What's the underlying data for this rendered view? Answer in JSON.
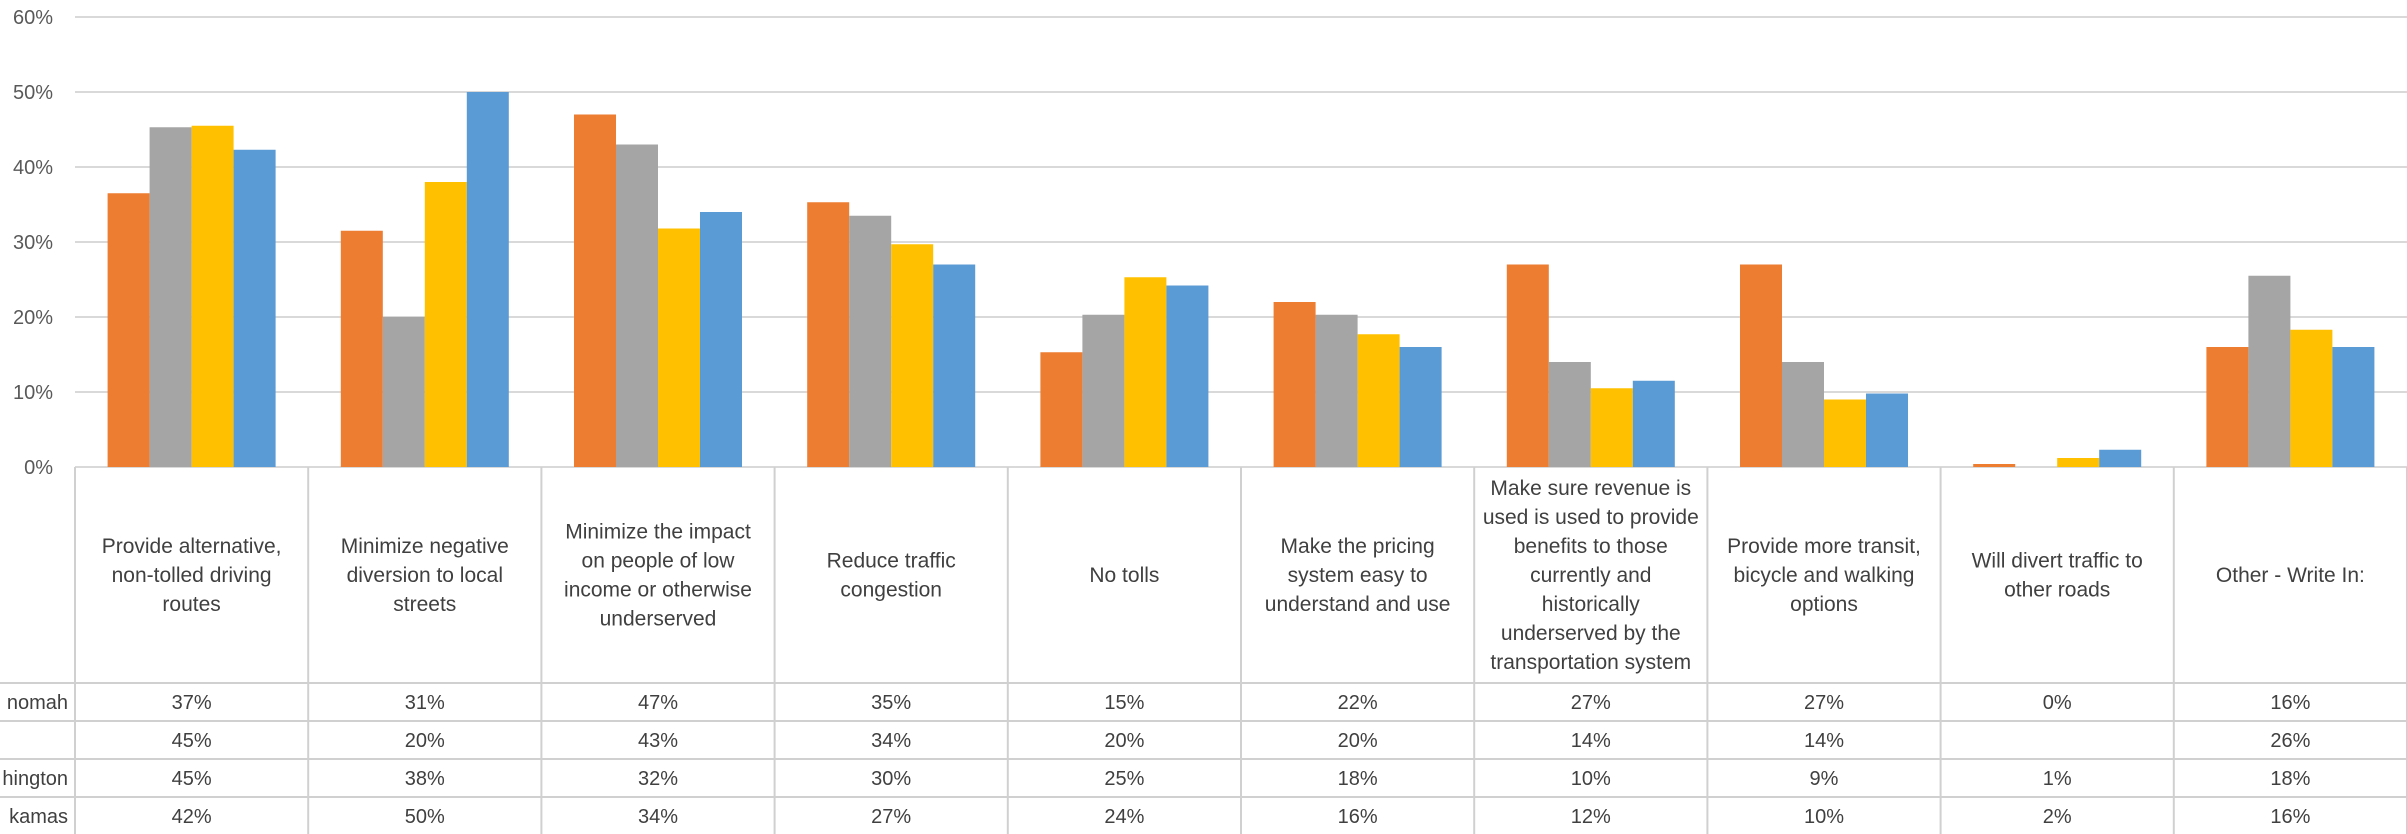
{
  "chart_data": {
    "type": "bar",
    "ylim": [
      0,
      60
    ],
    "yticks": [
      "0%",
      "10%",
      "20%",
      "30%",
      "40%",
      "50%",
      "60%"
    ],
    "grid": true,
    "categories": [
      "Provide alternative, non-tolled driving routes",
      "Minimize negative diversion to local streets",
      "Minimize the impact on people of low income or otherwise underserved",
      "Reduce traffic congestion",
      "No tolls",
      "Make the pricing system easy to understand and use",
      "Make sure revenue is used is used to provide benefits to those currently and historically underserved by the transportation system",
      "Provide more transit, bicycle and walking options",
      "Will divert traffic to other roads",
      "Other - Write In:"
    ],
    "category_lines": [
      [
        "Provide alternative,",
        "non-tolled driving",
        "routes"
      ],
      [
        "Minimize negative",
        "diversion to local",
        "streets"
      ],
      [
        "Minimize the impact",
        "on people of low",
        "income or otherwise",
        "underserved"
      ],
      [
        "Reduce traffic",
        "congestion"
      ],
      [
        "No tolls"
      ],
      [
        "Make the pricing",
        "system easy to",
        "understand and use"
      ],
      [
        "Make sure revenue is",
        "used is used to provide",
        "benefits to those",
        "currently and",
        "historically",
        "underserved by the",
        "transportation system"
      ],
      [
        "Provide more transit,",
        "bicycle and walking",
        "options"
      ],
      [
        "Will divert traffic to",
        "other roads"
      ],
      [
        "Other - Write In:"
      ]
    ],
    "series": [
      {
        "name": "nomah",
        "color": "#ED7D31",
        "values": [
          36.5,
          31.5,
          47,
          35.3,
          15.3,
          22,
          27,
          27,
          0.4,
          16
        ],
        "labels": [
          "37%",
          "31%",
          "47%",
          "35%",
          "15%",
          "22%",
          "27%",
          "27%",
          "0%",
          "16%"
        ]
      },
      {
        "name": "",
        "color": "#A5A5A5",
        "values": [
          45.3,
          20,
          43,
          33.5,
          20.3,
          20.3,
          14,
          14,
          0,
          25.5
        ],
        "labels": [
          "45%",
          "20%",
          "43%",
          "34%",
          "20%",
          "20%",
          "14%",
          "14%",
          "",
          "26%"
        ]
      },
      {
        "name": "hington",
        "color": "#FFC000",
        "values": [
          45.5,
          38,
          31.8,
          29.7,
          25.3,
          17.7,
          10.5,
          9,
          1.2,
          18.3
        ],
        "labels": [
          "45%",
          "38%",
          "32%",
          "30%",
          "25%",
          "18%",
          "10%",
          "9%",
          "1%",
          "18%"
        ]
      },
      {
        "name": "kamas",
        "color": "#5B9BD5",
        "values": [
          42.3,
          50,
          34,
          27,
          24.2,
          16,
          11.5,
          9.8,
          2.3,
          16
        ],
        "labels": [
          "42%",
          "50%",
          "34%",
          "27%",
          "24%",
          "16%",
          "12%",
          "10%",
          "2%",
          "16%"
        ]
      }
    ]
  }
}
